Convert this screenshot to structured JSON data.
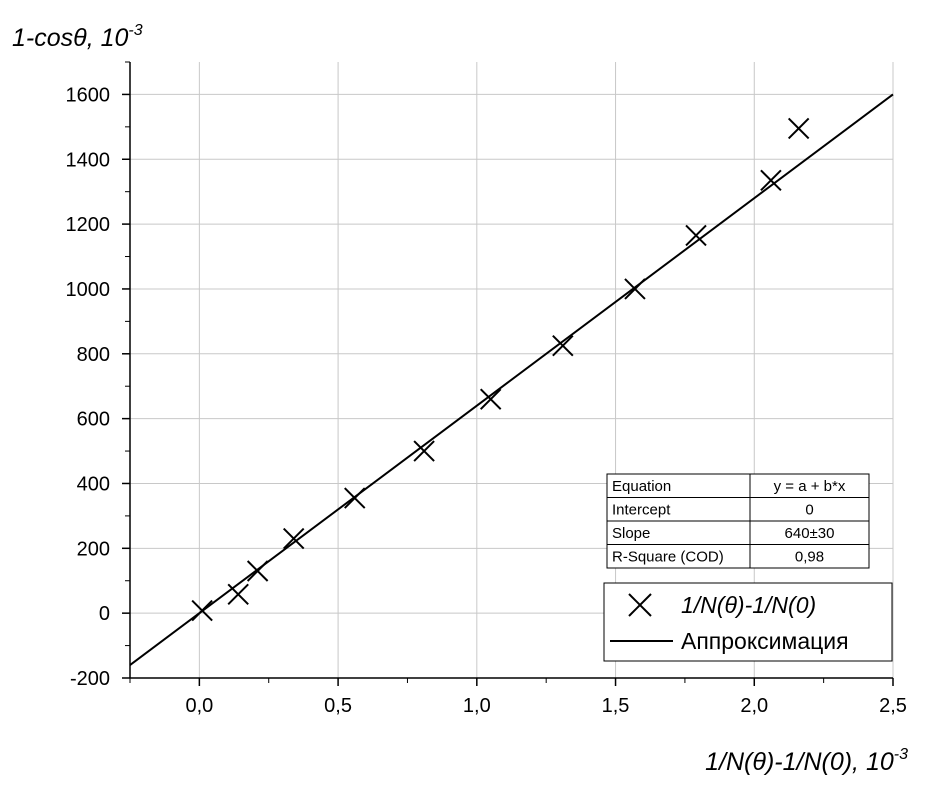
{
  "chart_data": {
    "type": "scatter",
    "ylabel": "1-cosθ, 10",
    "ylabel_exponent": "-3",
    "xlabel": "1/N(θ)-1/N(0), 10",
    "xlabel_exponent": "-3",
    "xlim": [
      -0.25,
      2.5
    ],
    "ylim": [
      -200,
      1700
    ],
    "x_ticks": [
      0.0,
      0.5,
      1.0,
      1.5,
      2.0,
      2.5
    ],
    "x_tick_labels": [
      "0,0",
      "0,5",
      "1,0",
      "1,5",
      "2,0",
      "2,5"
    ],
    "y_ticks": [
      -200,
      0,
      200,
      400,
      600,
      800,
      1000,
      1200,
      1400,
      1600
    ],
    "y_tick_labels": [
      "-200",
      "0",
      "200",
      "400",
      "600",
      "800",
      "1000",
      "1200",
      "1400",
      "1600"
    ],
    "grid": true,
    "series": [
      {
        "name": "1/N(θ)-1/N(0)",
        "marker": "x",
        "color": "#000000",
        "x": [
          0.01,
          0.14,
          0.21,
          0.34,
          0.56,
          0.81,
          1.05,
          1.31,
          1.57,
          1.79,
          2.06,
          2.16
        ],
        "y": [
          8,
          58,
          130,
          230,
          355,
          500,
          660,
          825,
          1000,
          1165,
          1335,
          1495
        ]
      },
      {
        "name": "Аппроксимация",
        "type": "line",
        "color": "#000000",
        "x": [
          -0.25,
          2.5
        ],
        "y": [
          -160,
          1600
        ]
      }
    ],
    "legend": {
      "position": "bottom-right"
    },
    "fit_table": {
      "rows": [
        [
          "Equation",
          "y = a + b*x"
        ],
        [
          "Intercept",
          "0"
        ],
        [
          "Slope",
          "640±30"
        ],
        [
          "R-Square (COD)",
          "0,98"
        ]
      ]
    }
  }
}
